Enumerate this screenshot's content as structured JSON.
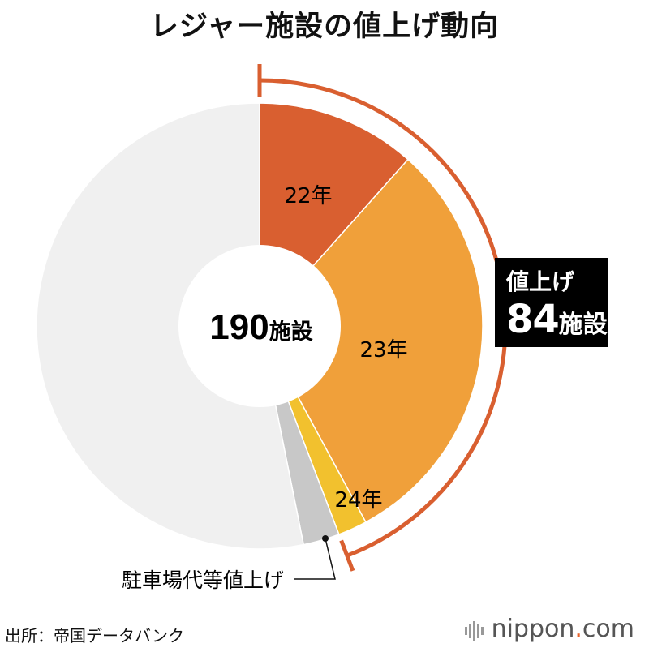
{
  "title": "レジャー施設の値上げ動向",
  "center_label": {
    "number": "190",
    "unit": "施設"
  },
  "callout": {
    "line1": "値上げ",
    "number": "84",
    "unit": "施設"
  },
  "source": "出所：帝国データバンク",
  "logo": {
    "name": "nippon",
    "dot": ".",
    "suffix": "com"
  },
  "chart_data": {
    "type": "pie",
    "total": 190,
    "slices": [
      {
        "label": "22年",
        "value": 22,
        "color": "#D95F30"
      },
      {
        "label": "23年",
        "value": 58,
        "color": "#F0A03A"
      },
      {
        "label": "24年",
        "value": 4,
        "color": "#F2C12E"
      },
      {
        "label": "駐車場代等値上げ",
        "value": 5,
        "color": "#C8C8C8"
      },
      {
        "label": "",
        "value": 101,
        "color": "#F0F0F0"
      }
    ],
    "bracket": {
      "text": "値上げ",
      "value": 84,
      "unit": "施設",
      "color": "#D95F30"
    }
  }
}
